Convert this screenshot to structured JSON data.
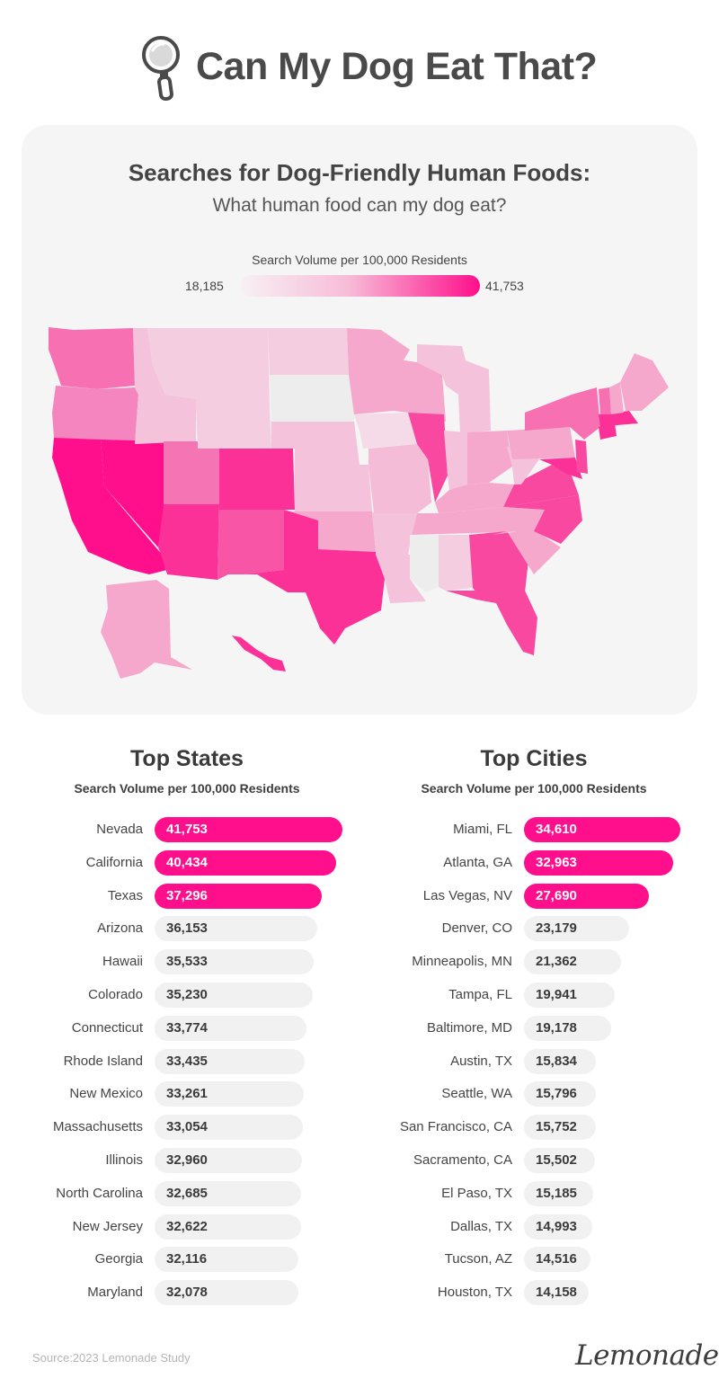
{
  "header": {
    "title": "Can My Dog Eat That?",
    "icon": "magnifying-glass-icon"
  },
  "map": {
    "title": "Searches for Dog-Friendly Human Foods:",
    "subtitle": "What human food can my dog eat?",
    "legend": {
      "title": "Search Volume per 100,000 Residents",
      "min_label": "18,185",
      "max_label": "41,753",
      "min": 18185,
      "max": 41753,
      "color_low": "#f7f0f4",
      "color_high": "#ff0f8b"
    }
  },
  "chart_data": [
    {
      "type": "bar",
      "title": "Top States",
      "subtitle": "Search Volume per 100,000 Residents",
      "orientation": "horizontal",
      "highlight_count": 3,
      "categories": [
        "Nevada",
        "California",
        "Texas",
        "Arizona",
        "Hawaii",
        "Colorado",
        "Connecticut",
        "Rhode Island",
        "New Mexico",
        "Massachusetts",
        "Illinois",
        "North Carolina",
        "New Jersey",
        "Georgia",
        "Maryland"
      ],
      "values": [
        41753,
        40434,
        37296,
        36153,
        35533,
        35230,
        33774,
        33435,
        33261,
        33054,
        32960,
        32685,
        32622,
        32116,
        32078
      ],
      "labels": [
        "41,753",
        "40,434",
        "37,296",
        "36,153",
        "35,533",
        "35,230",
        "33,774",
        "33,435",
        "33,261",
        "33,054",
        "32,960",
        "32,685",
        "32,622",
        "32,116",
        "32,078"
      ]
    },
    {
      "type": "bar",
      "title": "Top Cities",
      "subtitle": "Search Volume per 100,000 Residents",
      "orientation": "horizontal",
      "highlight_count": 3,
      "categories": [
        "Miami, FL",
        "Atlanta, GA",
        "Las Vegas, NV",
        "Denver, CO",
        "Minneapolis, MN",
        "Tampa, FL",
        "Baltimore, MD",
        "Austin, TX",
        "Seattle, WA",
        "San Francisco, CA",
        "Sacramento, CA",
        "El Paso, TX",
        "Dallas, TX",
        "Tucson, AZ",
        "Houston, TX"
      ],
      "values": [
        34610,
        32963,
        27690,
        23179,
        21362,
        19941,
        19178,
        15834,
        15796,
        15752,
        15502,
        15185,
        14993,
        14516,
        14158
      ],
      "labels": [
        "34,610",
        "32,963",
        "27,690",
        "23,179",
        "21,362",
        "19,941",
        "19,178",
        "15,834",
        "15,796",
        "15,752",
        "15,502",
        "15,185",
        "14,993",
        "14,516",
        "14,158"
      ]
    }
  ],
  "colors": {
    "accent": "#ff0f8b",
    "bar_default": "#f1f1f1",
    "card_bg": "#f5f5f5"
  },
  "footer": {
    "source": "Source:2023 Lemonade Study",
    "brand": "Lemonade"
  }
}
